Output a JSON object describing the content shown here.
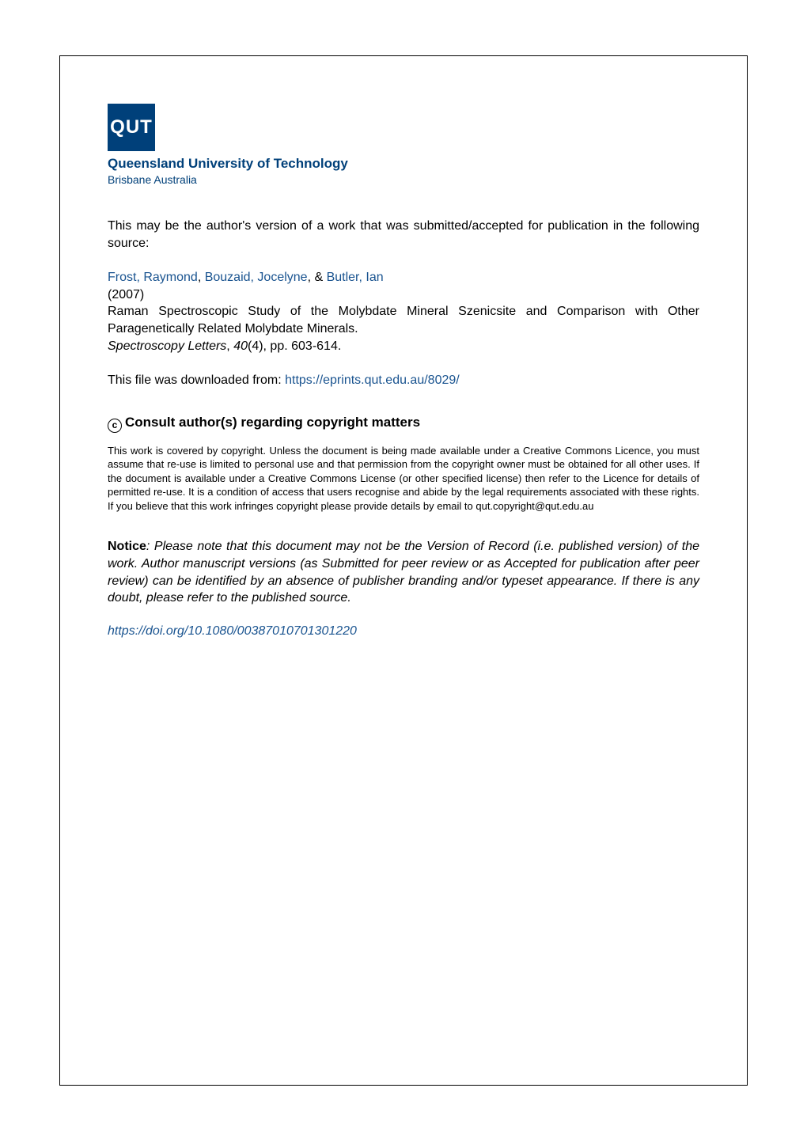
{
  "logo": {
    "text": "QUT",
    "bg_color": "#00407a",
    "text_color": "#ffffff"
  },
  "institution": {
    "name": "Queensland University of Technology",
    "location": "Brisbane Australia",
    "color": "#00407a"
  },
  "preamble": "This may be the author's version of a work that was submitted/accepted for publication in the following source:",
  "authors": {
    "a1": "Frost, Raymond",
    "sep1": ", ",
    "a2": "Bouzaid, Jocelyne",
    "sep2": ", & ",
    "a3": "Butler, Ian"
  },
  "year": "(2007)",
  "title": "Raman Spectroscopic Study of the Molybdate Mineral Szenicsite and Comparison with Other Paragenetically Related Molybdate Minerals.",
  "journal": {
    "name": "Spectroscopy Letters",
    "sep": ", ",
    "volume": "40",
    "issue": "(4), pp. 603-614."
  },
  "download": {
    "prefix": "This file was downloaded from: ",
    "url": "https://eprints.qut.edu.au/8029/"
  },
  "copyright": {
    "symbol": "c",
    "heading": "Consult author(s) regarding copyright matters",
    "body": "This work is covered by copyright. Unless the document is being made available under a Creative Commons Licence, you must assume that re-use is limited to personal use and that permission from the copyright owner must be obtained for all other uses. If the document is available under a Creative Commons License (or other specified license) then refer to the Licence for details of permitted re-use. It is a condition of access that users recognise and abide by the legal requirements associated with these rights. If you believe that this work infringes copyright please provide details by email to qut.copyright@qut.edu.au"
  },
  "notice": {
    "label": "Notice",
    "sep": ": ",
    "body": "Please note that this document may not be the Version of Record (i.e. published version) of the work. Author manuscript versions (as Submitted for peer review or as Accepted for publication after peer review) can be identified by an absence of publisher branding and/or typeset appearance. If there is any doubt, please refer to the published source."
  },
  "doi": {
    "url": "https://doi.org/10.1080/00387010701301220"
  },
  "colors": {
    "link": "#1a5490",
    "text": "#000000",
    "border": "#000000",
    "background": "#ffffff"
  }
}
